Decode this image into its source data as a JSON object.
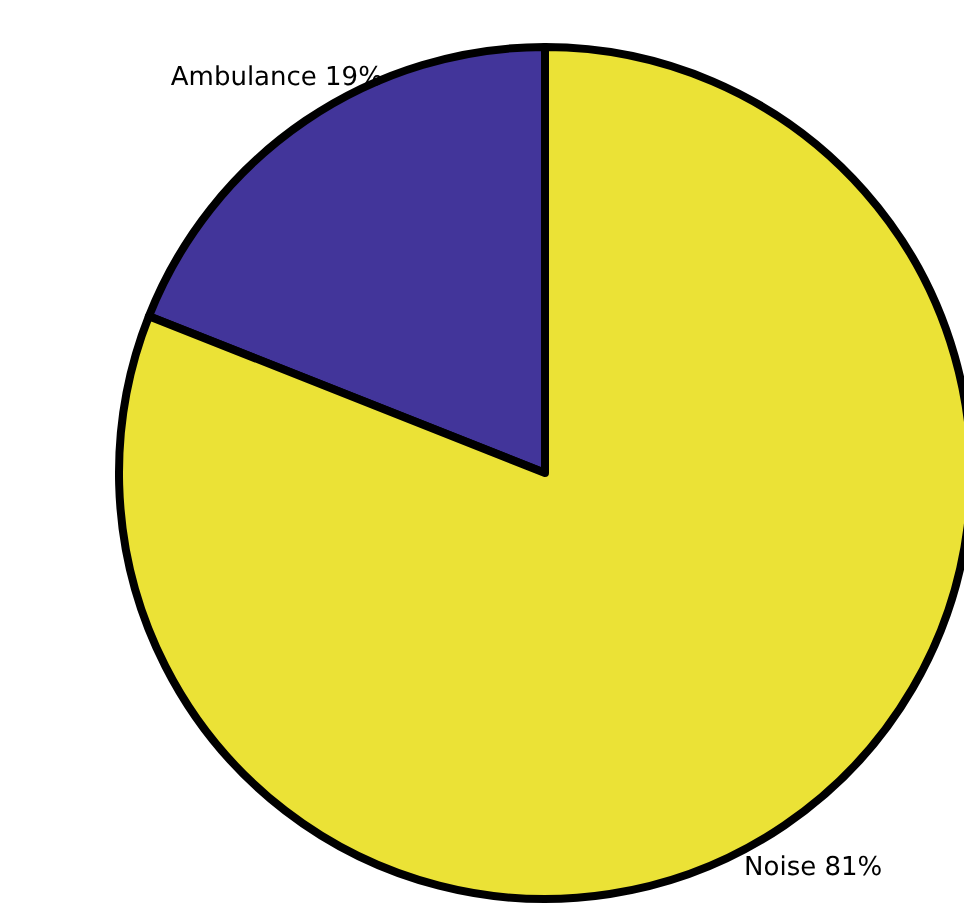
{
  "chart_data": {
    "type": "pie",
    "categories": [
      "Ambulance",
      "Noise"
    ],
    "values": [
      19,
      81
    ],
    "value_labels": [
      "19%",
      "81%"
    ],
    "colors": [
      "#42359a",
      "#ebe236"
    ]
  }
}
